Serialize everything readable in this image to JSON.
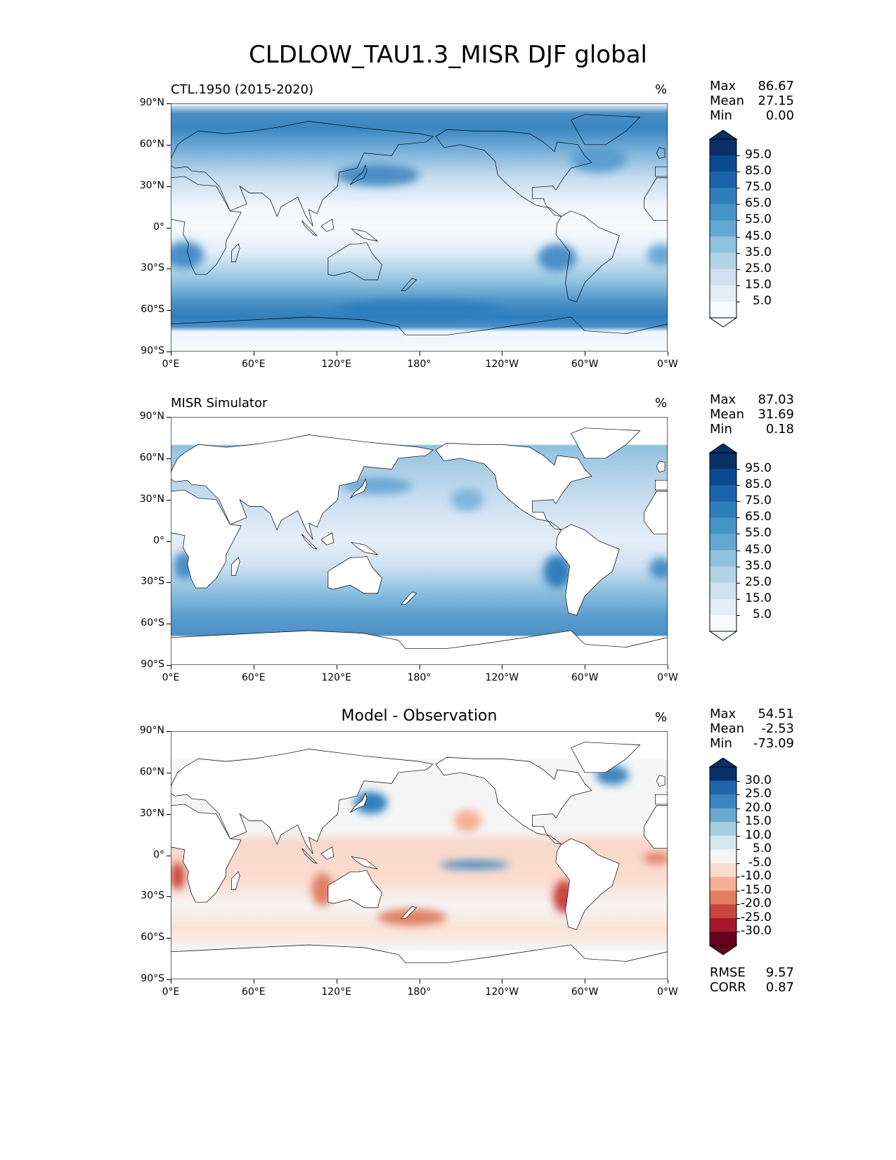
{
  "figure_title": "CLDLOW_TAU1.3_MISR DJF global",
  "chart_data": [
    {
      "type": "heatmap",
      "title_left": "CTL.1950 (2015-2020)",
      "title_center": "",
      "units": "%",
      "stats": {
        "max_label": "Max",
        "max": "86.67",
        "mean_label": "Mean",
        "mean": "27.15",
        "min_label": "Min",
        "min": "0.00"
      },
      "colorbar": {
        "ticks": [
          "95.0",
          "85.0",
          "75.0",
          "65.0",
          "55.0",
          "45.0",
          "35.0",
          "25.0",
          "15.0",
          "5.0"
        ],
        "colors": [
          "#0a2f66",
          "#0a4a90",
          "#1a62aa",
          "#2f7ebc",
          "#4594c8",
          "#63a8d3",
          "#8fc2df",
          "#b3d3e8",
          "#cfe1f2",
          "#e2edf8",
          "#f7fbff"
        ],
        "arrow_top": "#0a2f66",
        "arrow_bottom": "#ffffff"
      },
      "field": "model"
    },
    {
      "type": "heatmap",
      "title_left": "MISR Simulator",
      "title_center": "",
      "units": "%",
      "stats": {
        "max_label": "Max",
        "max": "87.03",
        "mean_label": "Mean",
        "mean": "31.69",
        "min_label": "Min",
        "min": "0.18"
      },
      "colorbar": {
        "ticks": [
          "95.0",
          "85.0",
          "75.0",
          "65.0",
          "55.0",
          "45.0",
          "35.0",
          "25.0",
          "15.0",
          "5.0"
        ],
        "colors": [
          "#0a2f66",
          "#0a4a90",
          "#1a62aa",
          "#2f7ebc",
          "#4594c8",
          "#63a8d3",
          "#8fc2df",
          "#b3d3e8",
          "#cfe1f2",
          "#e2edf8",
          "#f7fbff"
        ],
        "arrow_top": "#0a2f66",
        "arrow_bottom": "#ffffff"
      },
      "field": "obs"
    },
    {
      "type": "heatmap",
      "title_left": "",
      "title_center": "Model - Observation",
      "units": "%",
      "stats": {
        "max_label": "Max",
        "max": "54.51",
        "mean_label": "Mean",
        "mean": "-2.53",
        "min_label": "Min",
        "min": "-73.09"
      },
      "extra_stats": {
        "rmse_label": "RMSE",
        "rmse": "9.57",
        "corr_label": "CORR",
        "corr": "0.87"
      },
      "colorbar": {
        "ticks": [
          "30.0",
          "25.0",
          "20.0",
          "15.0",
          "10.0",
          "5.0",
          "-5.0",
          "-10.0",
          "-15.0",
          "-20.0",
          "-25.0",
          "-30.0"
        ],
        "colors": [
          "#08306b",
          "#2166ac",
          "#3a85bf",
          "#67a9cf",
          "#a6cee3",
          "#d7e7f0",
          "#f5f5f5",
          "#fbdccf",
          "#f5b093",
          "#e07f63",
          "#c9443e",
          "#a6172d",
          "#67001f"
        ],
        "arrow_top": "#08306b",
        "arrow_bottom": "#67001f"
      },
      "field": "diff"
    }
  ],
  "axes": {
    "yticks": [
      "90°N",
      "60°N",
      "30°N",
      "0°",
      "30°S",
      "60°S",
      "90°S"
    ],
    "ytick_values": [
      90,
      60,
      30,
      0,
      -30,
      -60,
      -90
    ],
    "xticks": [
      "0°E",
      "60°E",
      "120°E",
      "180°",
      "120°W",
      "60°W",
      "0°W"
    ],
    "xtick_values": [
      0,
      60,
      120,
      180,
      240,
      300,
      360
    ],
    "lon_range": [
      0,
      360
    ],
    "lat_range": [
      -90,
      90
    ]
  }
}
